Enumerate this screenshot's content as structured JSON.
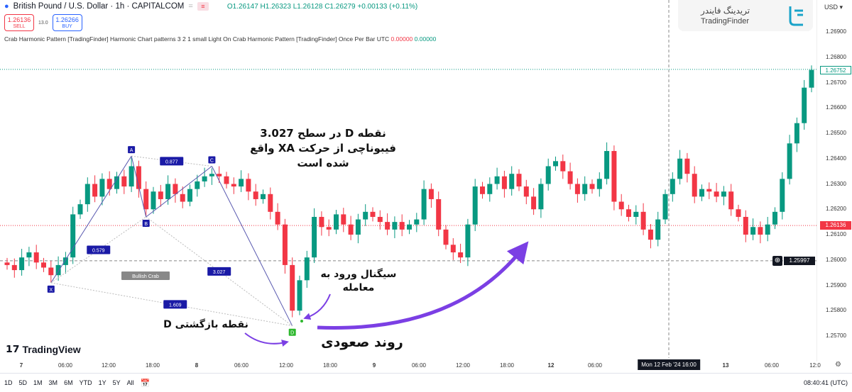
{
  "header": {
    "symbol": "British Pound / U.S. Dollar · 1h · CAPITALCOM",
    "open": "O1.26147",
    "high": "H1.26323",
    "low": "L1.26128",
    "close": "C1.26279",
    "change": "+0.00133 (+0.11%)"
  },
  "trade": {
    "sell_price": "1.26136",
    "sell_label": "SELL",
    "spread": "13.0",
    "buy_price": "1.26266",
    "buy_label": "BUY"
  },
  "indicator": {
    "text": "Crab Harmonic Pattern [TradingFinder] Harmonic Chart patterns 3 2 1 small Light On Crab Harmonic Pattern [TradingFinder] Once Per Bar UTC",
    "v1": "0.00000",
    "v2": "0.00000"
  },
  "brand": {
    "fa": "تریدینگ فایندر",
    "en": "TradingFinder",
    "tv": "TradingView"
  },
  "axis": {
    "currency": "USD",
    "ticks": [
      "1.26900",
      "1.26800",
      "1.26700",
      "1.26600",
      "1.26500",
      "1.26400",
      "1.26300",
      "1.26200",
      "1.26100",
      "1.26000",
      "1.25900",
      "1.25800",
      "1.25700"
    ],
    "last_price": "1.26752",
    "bid_price": "1.26136",
    "crosshair_price": "1.25997"
  },
  "xaxis": {
    "labels": [
      "7",
      "06:00",
      "12:00",
      "18:00",
      "8",
      "06:00",
      "12:00",
      "18:00",
      "9",
      "06:00",
      "12:00",
      "18:00",
      "12",
      "06:00",
      "13",
      "06:00",
      "12:0"
    ],
    "crosshair": "Mon 12 Feb '24 16:00"
  },
  "bottom": {
    "ranges": [
      "1D",
      "5D",
      "1M",
      "3M",
      "6M",
      "YTD",
      "1Y",
      "5Y",
      "All"
    ],
    "clock": "08:40:41 (UTC)"
  },
  "colors": {
    "up": "#089981",
    "down": "#f23645",
    "pattern": "#1a1aa6",
    "arrow": "#7b3fe4"
  },
  "chart_data": {
    "type": "candlestick",
    "first_open": 1.2599,
    "closes": [
      1.2598,
      1.2596,
      1.2601,
      1.2603,
      1.2599,
      1.2597,
      1.2594,
      1.2598,
      1.2601,
      1.2618,
      1.2622,
      1.263,
      1.2625,
      1.2632,
      1.2628,
      1.2633,
      1.2629,
      1.2637,
      1.2628,
      1.262,
      1.2627,
      1.2624,
      1.263,
      1.2626,
      1.2623,
      1.2628,
      1.2631,
      1.2633,
      1.2634,
      1.2633,
      1.263,
      1.2629,
      1.2632,
      1.2627,
      1.2624,
      1.2626,
      1.2619,
      1.2614,
      1.2598,
      1.258,
      1.2592,
      1.2601,
      1.2617,
      1.2613,
      1.2612,
      1.2618,
      1.2614,
      1.261,
      1.2616,
      1.2619,
      1.2617,
      1.2615,
      1.2612,
      1.2615,
      1.2612,
      1.2614,
      1.2616,
      1.2628,
      1.2624,
      1.2612,
      1.2606,
      1.2603,
      1.2601,
      1.2614,
      1.2629,
      1.2626,
      1.263,
      1.2633,
      1.2628,
      1.2634,
      1.2629,
      1.2625,
      1.262,
      1.263,
      1.2637,
      1.2639,
      1.2635,
      1.263,
      1.2626,
      1.263,
      1.2628,
      1.2632,
      1.2643,
      1.2623,
      1.262,
      1.2617,
      1.2619,
      1.2612,
      1.2608,
      1.2616,
      1.2626,
      1.2632,
      1.264,
      1.2634,
      1.2625,
      1.2628,
      1.2627,
      1.2625,
      1.2627,
      1.262,
      1.2617,
      1.261,
      1.2613,
      1.261,
      1.2614,
      1.2619,
      1.2632,
      1.2646,
      1.2654,
      1.2668,
      1.2675
    ],
    "ylim": [
      1.2565,
      1.27
    ],
    "pattern": {
      "name": "Bullish Crab",
      "points": [
        {
          "label": "X",
          "index": 6,
          "price": 1.2591
        },
        {
          "label": "A",
          "index": 17,
          "price": 1.2641
        },
        {
          "label": "B",
          "index": 19,
          "price": 1.2617
        },
        {
          "label": "C",
          "index": 28,
          "price": 1.2637
        },
        {
          "label": "D",
          "index": 39,
          "price": 1.2574
        }
      ],
      "ratios": {
        "XB": "0.579",
        "AC": "0.877",
        "BD": "3.027",
        "XD": "1.609"
      }
    }
  },
  "notes": {
    "top": "نقطه D در سطح 3.027\nفیبوناچی از حرکت XA واقع\nشده است",
    "signal": "سیگنال ورود به\nمعامله",
    "reversal": "نقطه بازگشتی D",
    "trend": "روند صعودی"
  }
}
